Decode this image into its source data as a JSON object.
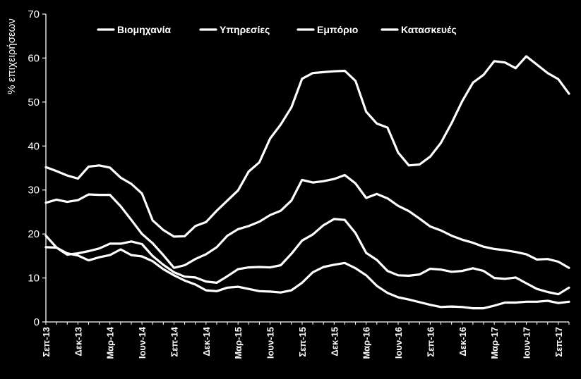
{
  "chart_data": {
    "type": "line",
    "ylabel": "% επιχειρήσεων",
    "xlabel": "",
    "title": "",
    "ylim": [
      0,
      70
    ],
    "yticks": [
      0,
      10,
      20,
      30,
      40,
      50,
      60,
      70
    ],
    "grid": false,
    "legend_position": "top",
    "background": "#000000",
    "line_color": "#ffffff",
    "x_tick_labels": [
      "Σεπ-13",
      "Δεκ-13",
      "Μαρ-14",
      "Ιουν-14",
      "Σεπ-14",
      "Δεκ-14",
      "Μαρ-15",
      "Ιουν-15",
      "Σεπ-15",
      "Δεκ-15",
      "Μαρ-16",
      "Ιουν-16",
      "Σεπ-16",
      "Δεκ-16",
      "Μαρ-17",
      "Ιουν-17",
      "Σεπ-17"
    ],
    "series": [
      {
        "name": "Βιομηχανία",
        "values": [
          35.2,
          34.3,
          33.3,
          32.6,
          35.3,
          35.6,
          35.1,
          32.8,
          31.4,
          29.2,
          23.1,
          20.9,
          19.4,
          19.5,
          21.8,
          22.7,
          25.3,
          27.6,
          29.9,
          34.2,
          36.3,
          41.7,
          44.9,
          48.8,
          55.3,
          56.6,
          56.8,
          57.0,
          57.1,
          54.8,
          47.8,
          45.1,
          44.2,
          38.5,
          35.6,
          35.8,
          37.6,
          40.7,
          45.2,
          50.2,
          54.4,
          56.2,
          59.3,
          59.0,
          57.7,
          60.4,
          58.5,
          56.6,
          55.2,
          51.9
        ]
      },
      {
        "name": "Υπηρεσίες",
        "values": [
          27.1,
          27.8,
          27.3,
          27.7,
          29.0,
          28.9,
          28.9,
          26.3,
          23.2,
          20.0,
          17.9,
          15.2,
          12.3,
          12.9,
          14.3,
          15.4,
          17.0,
          19.6,
          21.1,
          21.8,
          22.8,
          24.3,
          25.3,
          27.6,
          32.3,
          31.7,
          32.0,
          32.5,
          33.4,
          31.5,
          28.2,
          29.1,
          28.1,
          26.4,
          25.2,
          23.5,
          21.7,
          20.8,
          19.6,
          18.7,
          18.0,
          17.1,
          16.6,
          16.3,
          15.9,
          15.4,
          14.2,
          14.3,
          13.7,
          12.3
        ]
      },
      {
        "name": "Εμπόριο",
        "values": [
          19.6,
          16.9,
          15.3,
          15.6,
          16.1,
          16.7,
          17.8,
          17.8,
          18.3,
          17.7,
          15.0,
          13.0,
          11.3,
          10.3,
          10.1,
          9.2,
          8.9,
          10.4,
          12.0,
          12.4,
          12.5,
          12.4,
          12.9,
          15.5,
          18.5,
          19.9,
          22.0,
          23.4,
          23.2,
          20.2,
          15.7,
          14.1,
          11.6,
          10.6,
          10.5,
          10.8,
          12.1,
          11.9,
          11.4,
          11.6,
          12.2,
          11.6,
          10.0,
          9.8,
          10.1,
          8.8,
          7.5,
          6.8,
          6.3,
          7.8
        ]
      },
      {
        "name": "Κατασκευές",
        "values": [
          17.0,
          16.9,
          15.6,
          15.1,
          14.0,
          14.7,
          15.2,
          16.5,
          15.2,
          14.9,
          13.8,
          12.0,
          10.6,
          9.4,
          8.5,
          7.2,
          7.0,
          7.8,
          8.0,
          7.5,
          7.0,
          6.9,
          6.7,
          7.2,
          8.9,
          11.3,
          12.5,
          13.0,
          13.4,
          12.2,
          10.6,
          8.2,
          6.6,
          5.6,
          5.1,
          4.5,
          3.9,
          3.4,
          3.5,
          3.4,
          3.1,
          3.1,
          3.7,
          4.4,
          4.4,
          4.6,
          4.6,
          4.8,
          4.3,
          4.6
        ]
      }
    ]
  }
}
